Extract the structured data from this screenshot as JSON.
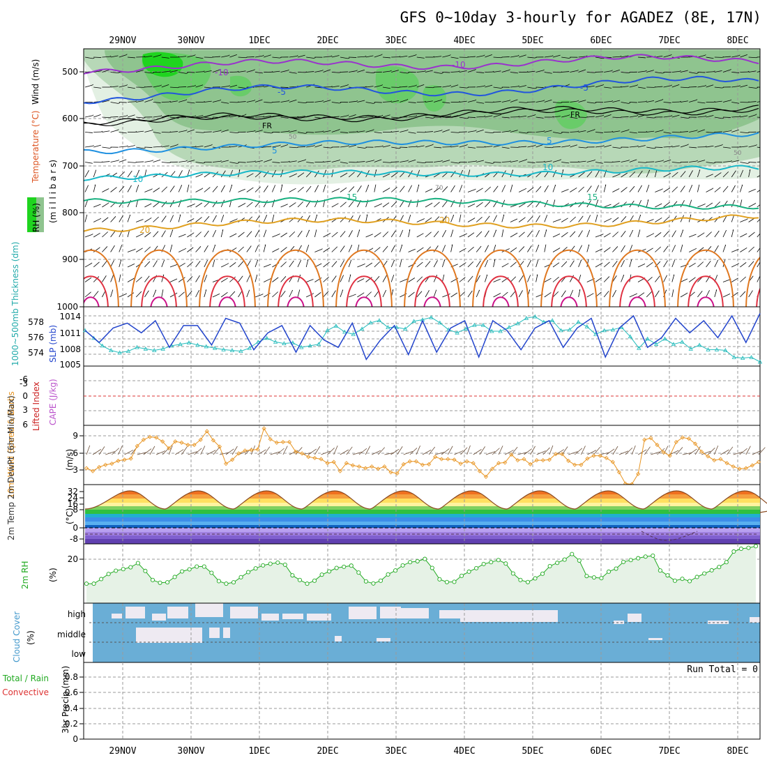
{
  "title": "GFS 0~10day 3-hourly for AGADEZ (8E, 17N)",
  "dates": [
    "29NOV",
    "30NOV",
    "1DEC",
    "2DEC",
    "3DEC",
    "4DEC",
    "5DEC",
    "6DEC",
    "7DEC",
    "8DEC"
  ],
  "colors": {
    "rh_dark": "#1fd41f",
    "rh_mid": "#69cc69",
    "rh_light": "#b7d8b7",
    "rh_pale": "#e3f0e3",
    "cloud": "#6aaed6",
    "cloud_clear": "#eeeaf2",
    "grid": "#9a9a9a",
    "thickness": "#22bbbb",
    "slp": "#2244cc",
    "wind_speed": "#e89420",
    "barb": "#6b4f3a",
    "rh2m": "#22aa22",
    "zero_line": "#dd3333"
  },
  "panels": {
    "upper": {
      "ylabels": [
        "Wind (m/s)",
        "Temperature (°C)",
        "(m i l l i b a r s)",
        "RH (%)"
      ],
      "yticks": [
        "500",
        "600",
        "700",
        "800",
        "900",
        "1000"
      ],
      "contour_labels": {
        "t_minus10": "-10",
        "t_minus5": "-5",
        "freezing": "FR",
        "t_5": "5",
        "t_10": "10",
        "t_15": "15",
        "t_20": "20",
        "rh_50": "50",
        "rh_70": "70"
      }
    },
    "thickness_slp": {
      "ylabel_left": "1000~500mb Thickness (dm)",
      "ylabel_right": "SLP (mb)",
      "left_ticks": [
        "578",
        "576",
        "574"
      ],
      "right_ticks": [
        "1014",
        "1011",
        "1008",
        "1005"
      ]
    },
    "stability": {
      "ylabel_li": "Lifted Index",
      "ylabel_cape": "CAPE (J/kg)",
      "ticks": [
        "-6",
        "-3",
        "0",
        "3",
        "6"
      ]
    },
    "wind10m": {
      "ylabel": "10m Wind Speed & Barbs",
      "unit": "(m/s)",
      "ticks": [
        "9",
        "6",
        "3"
      ]
    },
    "temp2m": {
      "ylabel": "2m Temp 2m DewPt (6hr Min/Max)",
      "unit": "(°C)",
      "ticks": [
        "32",
        "24",
        "16",
        "8",
        "0",
        "-8"
      ]
    },
    "rh2m": {
      "ylabel": "2m RH",
      "unit": "(%)",
      "ticks": [
        "20"
      ]
    },
    "cloud": {
      "ylabel": "Cloud Cover",
      "unit": "(%)",
      "levels": [
        "high",
        "middle",
        "low"
      ]
    },
    "precip": {
      "ylabel_total": "Total / Rain",
      "ylabel_conv": "Convective",
      "ylabel_unit": "3hr Precip (mm)",
      "ticks": [
        "0.8",
        "0.6",
        "0.4",
        "0.2",
        "0"
      ],
      "run_total": "Run Total = 0"
    }
  },
  "chart_data": [
    {
      "type": "line",
      "title": "1000~500mb Thickness / SLP",
      "series": [
        {
          "name": "1000~500mb Thickness (dm)",
          "values": [
            576.6,
            575.6,
            574.6,
            574.0,
            573.7,
            573.9,
            574.4,
            574.2,
            574.0,
            574.2,
            574.6,
            574.8,
            575.0,
            574.7,
            574.5,
            574.3,
            574.1,
            574.0,
            573.9,
            574.3,
            575.1,
            575.6,
            575.1,
            574.9,
            575.0,
            574.4,
            574.6,
            574.8,
            576.6,
            577.2,
            576.4,
            576.1,
            576.8,
            577.6,
            577.9,
            577.0,
            577.0,
            576.8,
            577.8,
            578.0,
            578.3,
            577.6,
            576.7,
            576.3,
            576.8,
            577.3,
            577.3,
            576.5,
            576.5,
            577.0,
            577.5,
            578.2,
            578.4,
            577.7,
            577.9,
            576.6,
            576.7,
            577.7,
            577.1,
            576.1,
            576.6,
            576.7,
            577.0,
            575.8,
            574.3,
            575.5,
            574.8,
            575.5,
            574.8,
            575.1,
            574.2,
            574.7,
            574.1,
            574.1,
            574.0,
            573.1,
            573.0,
            573.1,
            572.5
          ]
        },
        {
          "name": "SLP (mb)",
          "values": [
            1011.5,
            1009.0,
            1012.0,
            1013.0,
            1011.0,
            1013.5,
            1008.0,
            1012.5,
            1012.5,
            1008.5,
            1014.0,
            1013.0,
            1007.5,
            1011.0,
            1012.5,
            1007.0,
            1012.5,
            1009.5,
            1008.0,
            1013.0,
            1005.5,
            1009.5,
            1012.5,
            1006.5,
            1013.5,
            1007.0,
            1012.0,
            1013.5,
            1006.0,
            1013.5,
            1011.5,
            1007.5,
            1012.0,
            1013.5,
            1008.0,
            1012.0,
            1014.0,
            1006.0,
            1012.0,
            1014.5,
            1008.0,
            1010.0,
            1014.0,
            1011.0,
            1013.5,
            1010.0,
            1014.5,
            1009.0,
            1015.0
          ]
        }
      ]
    },
    {
      "type": "line",
      "title": "10m Wind Speed",
      "ylabel": "(m/s)",
      "ylim": [
        1,
        11
      ],
      "series": [
        {
          "name": "10m Wind Speed",
          "values": [
            3.3,
            2.8,
            3.5,
            3.9,
            4.1,
            4.6,
            4.8,
            5.0,
            7.2,
            8.3,
            8.8,
            8.7,
            8.0,
            6.8,
            8.0,
            7.8,
            7.4,
            7.4,
            8.3,
            9.8,
            8.2,
            7.1,
            4.1,
            4.8,
            5.9,
            6.4,
            6.5,
            6.6,
            10.3,
            8.4,
            7.8,
            7.9,
            7.9,
            6.2,
            5.9,
            5.3,
            5.1,
            4.9,
            4.2,
            4.4,
            2.8,
            4.2,
            3.8,
            3.6,
            3.3,
            3.6,
            3.2,
            3.6,
            2.6,
            2.4,
            4.0,
            4.5,
            4.5,
            3.9,
            4.0,
            5.3,
            4.9,
            4.9,
            4.8,
            4.1,
            4.5,
            4.2,
            2.8,
            1.8,
            3.2,
            4.2,
            4.3,
            5.7,
            4.7,
            4.9,
            4.0,
            4.7,
            4.7,
            4.8,
            5.8,
            5.8,
            4.6,
            3.9,
            3.9,
            5.0,
            5.5,
            5.5,
            5.1,
            4.4,
            2.6,
            0.6,
            0.5,
            2.3,
            8.3,
            8.6,
            7.4,
            6.1,
            5.5,
            7.9,
            8.7,
            8.5,
            7.6,
            6.2,
            5.4,
            4.7,
            4.9,
            4.2,
            3.6,
            3.2,
            3.3,
            3.8,
            4.4
          ]
        }
      ]
    },
    {
      "type": "line",
      "title": "2m RH",
      "ylabel": "(%)",
      "ylim": [
        0,
        25
      ],
      "series": [
        {
          "name": "2m RH",
          "values": [
            8.4,
            8.4,
            10.4,
            12.6,
            14.0,
            14.7,
            15.5,
            17.3,
            13.9,
            10.0,
            8.8,
            9.0,
            11.3,
            13.7,
            14.6,
            15.8,
            15.8,
            13.1,
            9.5,
            8.4,
            9.0,
            11.2,
            13.4,
            15.0,
            16.3,
            17.0,
            17.5,
            16.6,
            12.0,
            10.0,
            8.4,
            9.7,
            12.3,
            13.7,
            15.2,
            15.7,
            16.2,
            13.2,
            9.4,
            8.5,
            9.7,
            12.4,
            14.1,
            16.3,
            17.7,
            18.1,
            19.1,
            15.2,
            10.3,
            9.1,
            9.2,
            11.8,
            13.6,
            15.1,
            16.9,
            17.7,
            18.6,
            17.1,
            12.8,
            10.0,
            9.1,
            10.7,
            12.7,
            16.0,
            17.4,
            18.8,
            21.2,
            18.4,
            11.7,
            11.1,
            10.8,
            13.6,
            14.9,
            17.8,
            18.6,
            19.4,
            20.1,
            20.5,
            14.1,
            12.0,
            9.7,
            10.5,
            9.5,
            11.3,
            12.8,
            14.2,
            15.6,
            17.7,
            22.3,
            23.5,
            23.9,
            24.6
          ]
        }
      ]
    },
    {
      "type": "bar",
      "title": "3hr Precip (mm)",
      "ylim": [
        0,
        1
      ],
      "values": []
    }
  ]
}
